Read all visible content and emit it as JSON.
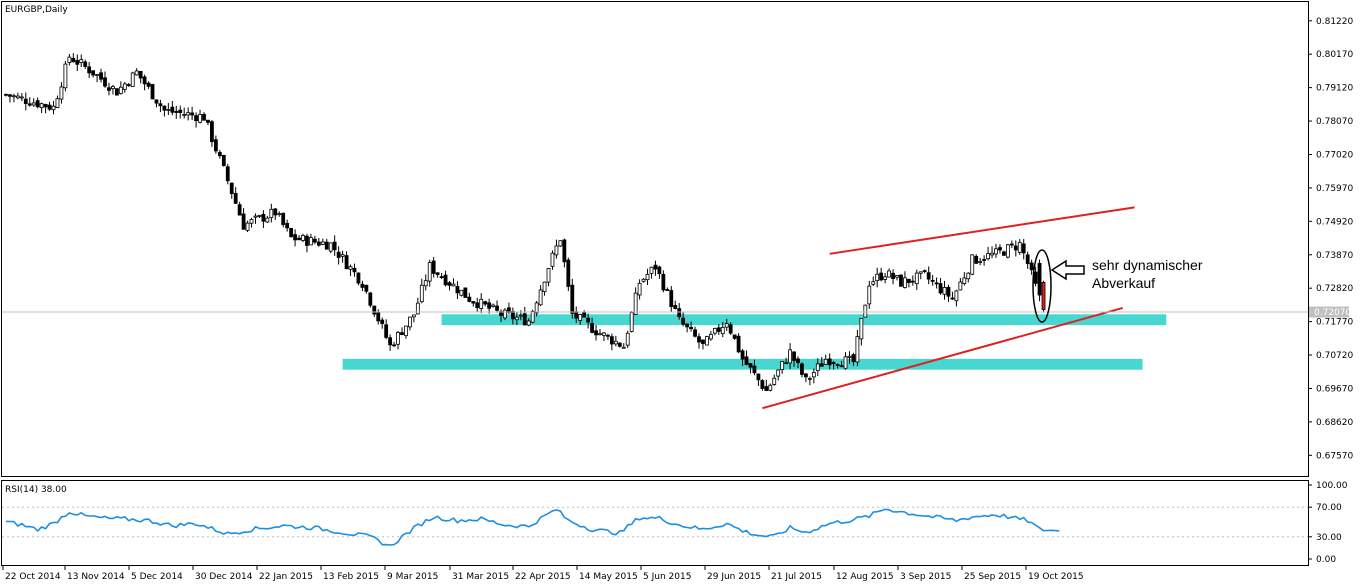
{
  "chart_data": {
    "type": "candlestick",
    "title": "EURGBP,Daily",
    "price_ticks": [
      "0.81220",
      "0.80170",
      "0.79120",
      "0.78070",
      "0.77020",
      "0.75970",
      "0.74920",
      "0.73870",
      "0.72820",
      "0.71770",
      "0.70720",
      "0.69670",
      "0.68620",
      "0.67570"
    ],
    "current_price": "0.72070",
    "ylim": [
      0.6692,
      0.8181
    ],
    "date_ticks": [
      "22 Oct 2014",
      "13 Nov 2014",
      "5 Dec 2014",
      "30 Dec 2014",
      "22 Jan 2015",
      "13 Feb 2015",
      "9 Mar 2015",
      "31 Mar 2015",
      "22 Apr 2015",
      "14 May 2015",
      "5 Jun 2015",
      "29 Jun 2015",
      "21 Jul 2015",
      "12 Aug 2015",
      "3 Sep 2015",
      "25 Sep 2015",
      "19 Oct 2015"
    ],
    "close_anchors": [
      {
        "x": 0,
        "y": 0.789
      },
      {
        "x": 12,
        "y": 0.785
      },
      {
        "x": 16,
        "y": 0.801
      },
      {
        "x": 22,
        "y": 0.796
      },
      {
        "x": 28,
        "y": 0.79
      },
      {
        "x": 33,
        "y": 0.796
      },
      {
        "x": 40,
        "y": 0.784
      },
      {
        "x": 50,
        "y": 0.782
      },
      {
        "x": 56,
        "y": 0.762
      },
      {
        "x": 60,
        "y": 0.748
      },
      {
        "x": 68,
        "y": 0.752
      },
      {
        "x": 72,
        "y": 0.744
      },
      {
        "x": 82,
        "y": 0.742
      },
      {
        "x": 90,
        "y": 0.73
      },
      {
        "x": 97,
        "y": 0.71
      },
      {
        "x": 103,
        "y": 0.72
      },
      {
        "x": 107,
        "y": 0.735
      },
      {
        "x": 112,
        "y": 0.73
      },
      {
        "x": 117,
        "y": 0.725
      },
      {
        "x": 125,
        "y": 0.72
      },
      {
        "x": 132,
        "y": 0.718
      },
      {
        "x": 137,
        "y": 0.735
      },
      {
        "x": 140,
        "y": 0.744
      },
      {
        "x": 143,
        "y": 0.72
      },
      {
        "x": 150,
        "y": 0.714
      },
      {
        "x": 156,
        "y": 0.71
      },
      {
        "x": 160,
        "y": 0.73
      },
      {
        "x": 164,
        "y": 0.735
      },
      {
        "x": 170,
        "y": 0.718
      },
      {
        "x": 176,
        "y": 0.71
      },
      {
        "x": 182,
        "y": 0.718
      },
      {
        "x": 186,
        "y": 0.706
      },
      {
        "x": 192,
        "y": 0.696
      },
      {
        "x": 198,
        "y": 0.708
      },
      {
        "x": 202,
        "y": 0.699
      },
      {
        "x": 207,
        "y": 0.706
      },
      {
        "x": 214,
        "y": 0.705
      },
      {
        "x": 218,
        "y": 0.73
      },
      {
        "x": 222,
        "y": 0.733
      },
      {
        "x": 226,
        "y": 0.73
      },
      {
        "x": 232,
        "y": 0.732
      },
      {
        "x": 239,
        "y": 0.725
      },
      {
        "x": 244,
        "y": 0.737
      },
      {
        "x": 250,
        "y": 0.739
      },
      {
        "x": 256,
        "y": 0.742
      },
      {
        "x": 258,
        "y": 0.736
      },
      {
        "x": 261,
        "y": 0.725
      },
      {
        "x": 262,
        "y": 0.7215
      }
    ],
    "rsi": {
      "label": "RSI(14) 38.00",
      "ticks": [
        "100.00",
        "70.00",
        "30.00",
        "0.00"
      ],
      "levels": [
        70,
        30
      ],
      "ylim": [
        0,
        100
      ],
      "anchors": [
        {
          "x": 0,
          "y": 50
        },
        {
          "x": 4,
          "y": 46
        },
        {
          "x": 8,
          "y": 40
        },
        {
          "x": 12,
          "y": 48
        },
        {
          "x": 16,
          "y": 64
        },
        {
          "x": 20,
          "y": 58
        },
        {
          "x": 25,
          "y": 55
        },
        {
          "x": 30,
          "y": 54
        },
        {
          "x": 36,
          "y": 52
        },
        {
          "x": 42,
          "y": 45
        },
        {
          "x": 48,
          "y": 48
        },
        {
          "x": 56,
          "y": 34
        },
        {
          "x": 62,
          "y": 40
        },
        {
          "x": 70,
          "y": 45
        },
        {
          "x": 78,
          "y": 42
        },
        {
          "x": 86,
          "y": 35
        },
        {
          "x": 92,
          "y": 30
        },
        {
          "x": 97,
          "y": 17
        },
        {
          "x": 100,
          "y": 30
        },
        {
          "x": 104,
          "y": 45
        },
        {
          "x": 108,
          "y": 57
        },
        {
          "x": 114,
          "y": 52
        },
        {
          "x": 120,
          "y": 54
        },
        {
          "x": 126,
          "y": 46
        },
        {
          "x": 132,
          "y": 44
        },
        {
          "x": 136,
          "y": 58
        },
        {
          "x": 139,
          "y": 67
        },
        {
          "x": 142,
          "y": 52
        },
        {
          "x": 148,
          "y": 40
        },
        {
          "x": 155,
          "y": 35
        },
        {
          "x": 160,
          "y": 56
        },
        {
          "x": 165,
          "y": 55
        },
        {
          "x": 170,
          "y": 46
        },
        {
          "x": 176,
          "y": 40
        },
        {
          "x": 182,
          "y": 48
        },
        {
          "x": 186,
          "y": 38
        },
        {
          "x": 190,
          "y": 32
        },
        {
          "x": 194,
          "y": 30
        },
        {
          "x": 198,
          "y": 42
        },
        {
          "x": 202,
          "y": 36
        },
        {
          "x": 208,
          "y": 48
        },
        {
          "x": 213,
          "y": 52
        },
        {
          "x": 218,
          "y": 58
        },
        {
          "x": 222,
          "y": 68
        },
        {
          "x": 228,
          "y": 62
        },
        {
          "x": 234,
          "y": 57
        },
        {
          "x": 240,
          "y": 52
        },
        {
          "x": 244,
          "y": 57
        },
        {
          "x": 250,
          "y": 60
        },
        {
          "x": 254,
          "y": 56
        },
        {
          "x": 258,
          "y": 52
        },
        {
          "x": 261,
          "y": 40
        },
        {
          "x": 266,
          "y": 38
        }
      ]
    },
    "trendlines": [
      {
        "name": "upper-trendline",
        "x1": 208,
        "y1": 0.739,
        "x2": 285,
        "y2": 0.7536,
        "color": "#e02020"
      },
      {
        "name": "lower-trendline",
        "x1": 191,
        "y1": 0.6905,
        "x2": 282,
        "y2": 0.722,
        "color": "#e02020"
      }
    ],
    "zones": [
      {
        "name": "upper-support-zone",
        "x1": 110,
        "x2": 293,
        "y": 0.7183,
        "thickness": 0.0034,
        "color": "#47d7d0"
      },
      {
        "name": "lower-support-zone",
        "x1": 85,
        "x2": 287,
        "y": 0.7043,
        "thickness": 0.0034,
        "color": "#47d7d0"
      }
    ],
    "annotation": {
      "line1": "sehr dynamischer",
      "line2": "Abverkauf"
    }
  }
}
